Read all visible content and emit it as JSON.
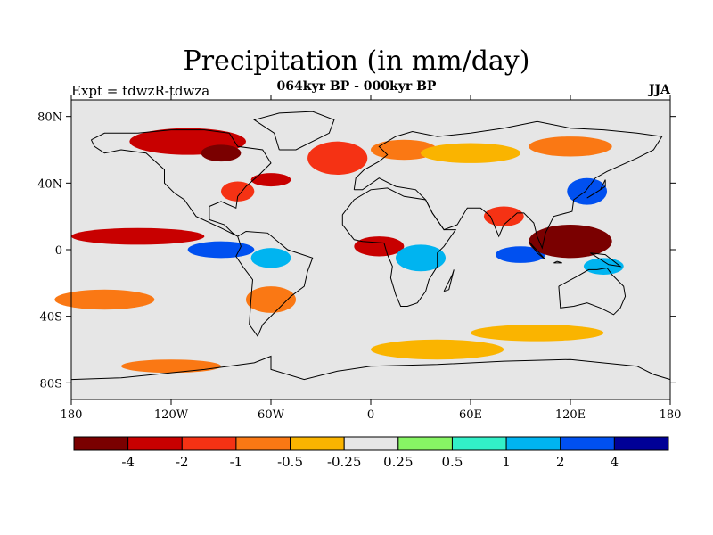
{
  "header": {
    "title": "Precipitation (in mm/day)",
    "subtitle": "064kyr BP - 000kyr BP",
    "expt": "Expt = tdwzR-tdwza",
    "season": "JJA"
  },
  "axes": {
    "lat_ticks": [
      {
        "value": 80,
        "label": "80N"
      },
      {
        "value": 40,
        "label": "40N"
      },
      {
        "value": 0,
        "label": "0"
      },
      {
        "value": -40,
        "label": "40S"
      },
      {
        "value": -80,
        "label": "80S"
      }
    ],
    "lon_ticks": [
      {
        "value": -180,
        "label": "180"
      },
      {
        "value": -120,
        "label": "120W"
      },
      {
        "value": -60,
        "label": "60W"
      },
      {
        "value": 0,
        "label": "0"
      },
      {
        "value": 60,
        "label": "60E"
      },
      {
        "value": 120,
        "label": "120E"
      },
      {
        "value": 180,
        "label": "180"
      }
    ],
    "lon_range": [
      -180,
      180
    ],
    "lat_range": [
      -90,
      90
    ]
  },
  "colorbar": {
    "colors": [
      "#7a0000",
      "#c80000",
      "#f53214",
      "#fa7814",
      "#fab400",
      "#e6e6e6",
      "#87f564",
      "#32f0c8",
      "#00b4f0",
      "#0050f0",
      "#000096"
    ],
    "labels": [
      "-4",
      "-2",
      "-1",
      "-0.5",
      "-0.25",
      "0.25",
      "0.5",
      "1",
      "2",
      "4"
    ]
  },
  "regions": [
    {
      "lon": -110,
      "lat": 65,
      "rx": 35,
      "ry": 8,
      "level": 1
    },
    {
      "lon": -90,
      "lat": 58,
      "rx": 12,
      "ry": 5,
      "level": 0
    },
    {
      "lon": -20,
      "lat": 55,
      "rx": 18,
      "ry": 10,
      "level": 2
    },
    {
      "lon": 20,
      "lat": 60,
      "rx": 20,
      "ry": 6,
      "level": 3
    },
    {
      "lon": 60,
      "lat": 58,
      "rx": 30,
      "ry": 6,
      "level": 4
    },
    {
      "lon": 120,
      "lat": 62,
      "rx": 25,
      "ry": 6,
      "level": 3
    },
    {
      "lon": -80,
      "lat": 35,
      "rx": 10,
      "ry": 6,
      "level": 2
    },
    {
      "lon": -60,
      "lat": 42,
      "rx": 12,
      "ry": 4,
      "level": 1
    },
    {
      "lon": 130,
      "lat": 35,
      "rx": 12,
      "ry": 8,
      "level": 9
    },
    {
      "lon": 80,
      "lat": 20,
      "rx": 12,
      "ry": 6,
      "level": 2
    },
    {
      "lon": -140,
      "lat": 8,
      "rx": 40,
      "ry": 5,
      "level": 1
    },
    {
      "lon": -90,
      "lat": 0,
      "rx": 20,
      "ry": 5,
      "level": 9
    },
    {
      "lon": -60,
      "lat": -5,
      "rx": 12,
      "ry": 6,
      "level": 8
    },
    {
      "lon": 5,
      "lat": 2,
      "rx": 15,
      "ry": 6,
      "level": 1
    },
    {
      "lon": 30,
      "lat": -5,
      "rx": 15,
      "ry": 8,
      "level": 8
    },
    {
      "lon": 90,
      "lat": -3,
      "rx": 15,
      "ry": 5,
      "level": 9
    },
    {
      "lon": 120,
      "lat": 5,
      "rx": 25,
      "ry": 10,
      "level": 0
    },
    {
      "lon": 140,
      "lat": -10,
      "rx": 12,
      "ry": 5,
      "level": 8
    },
    {
      "lon": -60,
      "lat": -30,
      "rx": 15,
      "ry": 8,
      "level": 3
    },
    {
      "lon": -160,
      "lat": -30,
      "rx": 30,
      "ry": 6,
      "level": 3
    },
    {
      "lon": 40,
      "lat": -60,
      "rx": 40,
      "ry": 6,
      "level": 4
    },
    {
      "lon": 100,
      "lat": -50,
      "rx": 40,
      "ry": 5,
      "level": 4
    },
    {
      "lon": -120,
      "lat": -70,
      "rx": 30,
      "ry": 4,
      "level": 3
    }
  ]
}
